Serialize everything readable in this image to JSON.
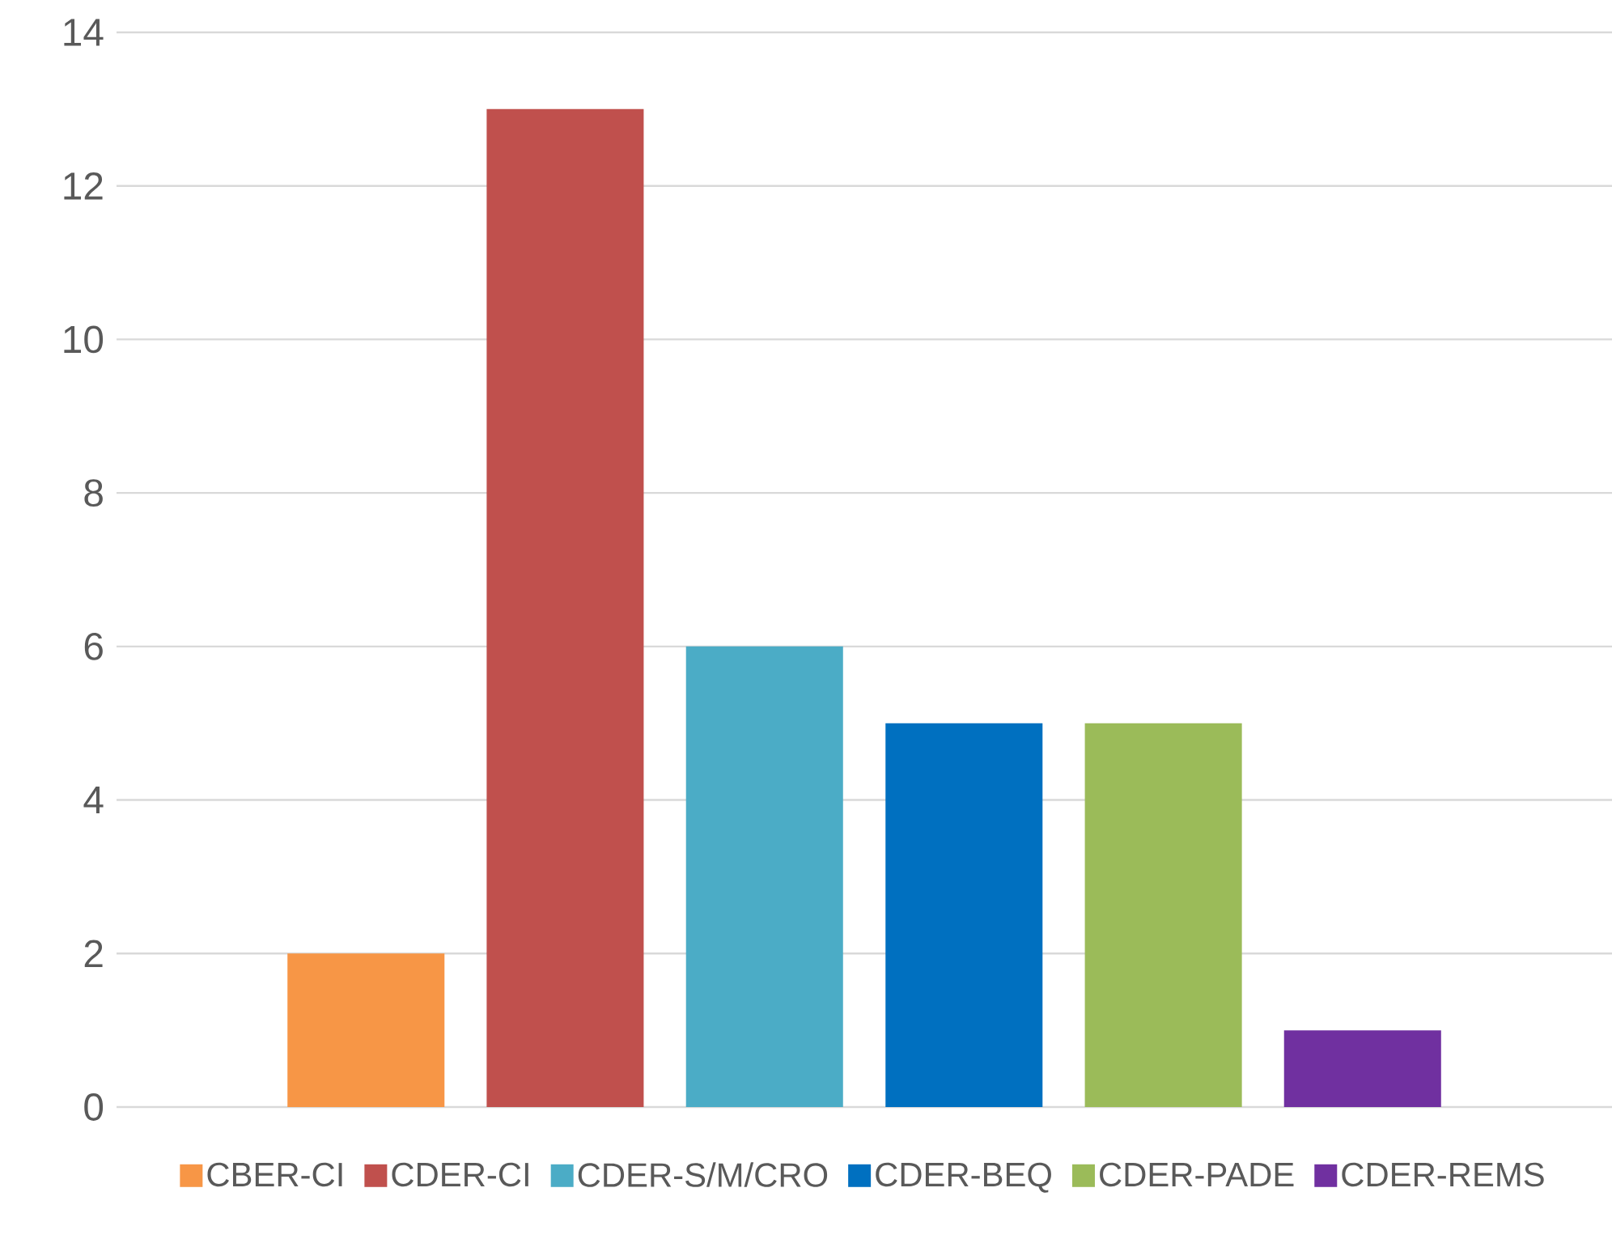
{
  "chart_data": {
    "type": "bar",
    "categories": [
      null
    ],
    "series": [
      {
        "name": "CBER-CI",
        "color": "#f79646",
        "values": [
          2
        ]
      },
      {
        "name": "CDER-CI",
        "color": "#c0504d",
        "values": [
          13
        ]
      },
      {
        "name": "CDER-S/M/CRO",
        "color": "#4bacc6",
        "values": [
          6
        ]
      },
      {
        "name": "CDER-BEQ",
        "color": "#0070c0",
        "values": [
          5
        ]
      },
      {
        "name": "CDER-PADE",
        "color": "#9bbb59",
        "values": [
          5
        ]
      },
      {
        "name": "CDER-REMS",
        "color": "#7030a0",
        "values": [
          1
        ]
      }
    ],
    "ylim": [
      0,
      14
    ],
    "yticks": [
      0,
      2,
      4,
      6,
      8,
      10,
      12,
      14
    ],
    "grid": "y",
    "legend": "bottom"
  }
}
